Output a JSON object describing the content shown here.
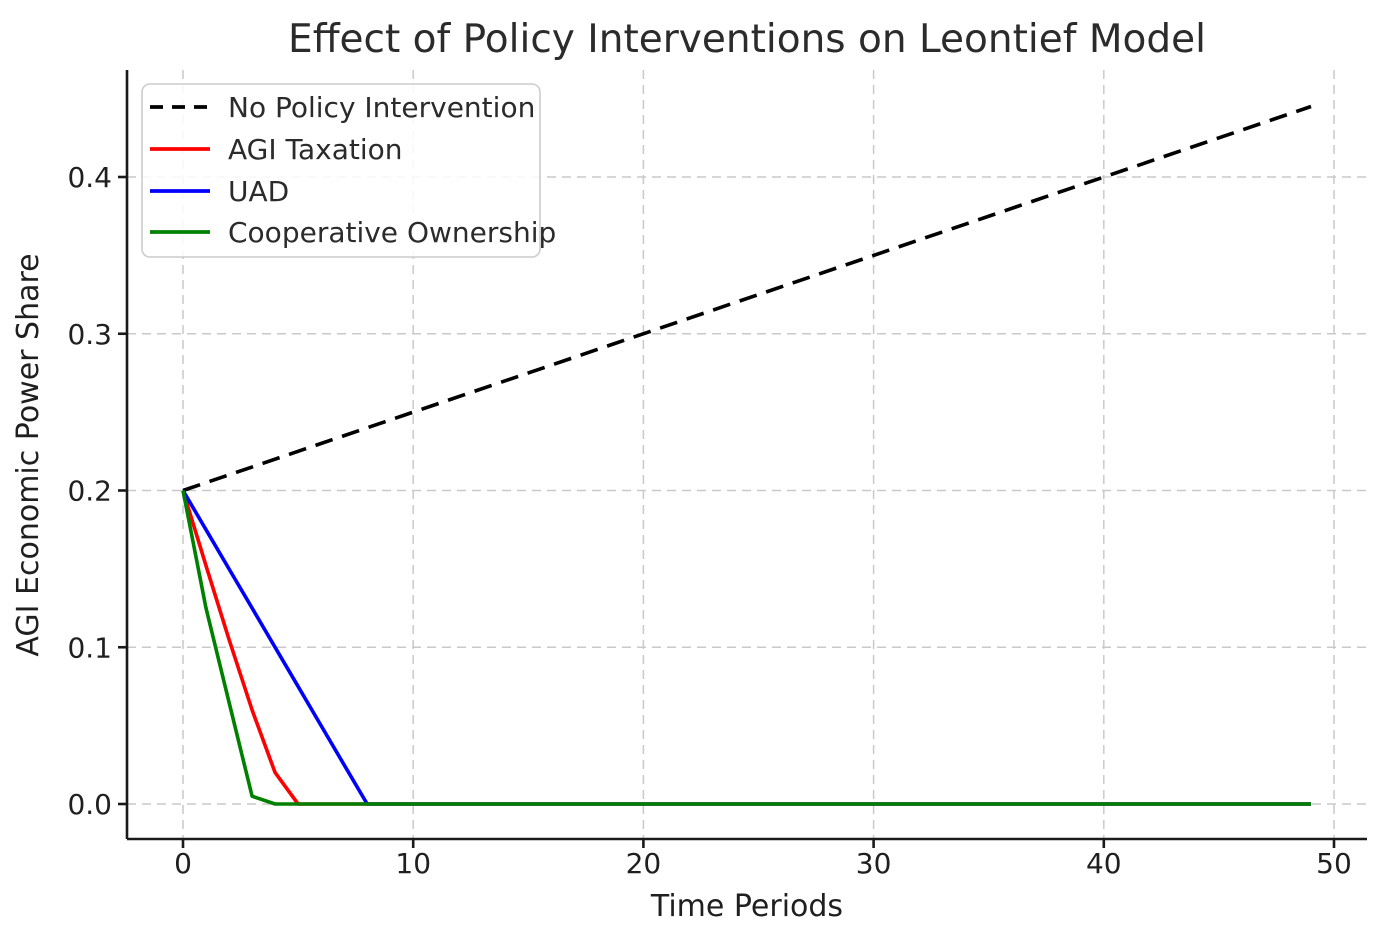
{
  "figure": {
    "background_color": "#ffffff",
    "text_color": "#1f1f1f",
    "spine_color": "#1a1a1a",
    "grid_color": "#c9c9c9"
  },
  "chart_data": {
    "type": "line",
    "title": "Effect of Policy Interventions on Leontief Model",
    "xlabel": "Time Periods",
    "ylabel": "AGI Economic Power Share",
    "xlim": [
      -2.45,
      51.45
    ],
    "ylim": [
      -0.0222,
      0.468
    ],
    "xticks": [
      0,
      10,
      20,
      30,
      40,
      50
    ],
    "xtick_labels": [
      "0",
      "10",
      "20",
      "30",
      "40",
      "50"
    ],
    "yticks": [
      0.0,
      0.1,
      0.2,
      0.3,
      0.4
    ],
    "ytick_labels": [
      "0.0",
      "0.1",
      "0.2",
      "0.3",
      "0.4"
    ],
    "grid": {
      "on": true,
      "style": "dashed",
      "color": "#c9c9c9"
    },
    "legend": {
      "position": "upper-left",
      "border_color": "#cccccc",
      "fill": "#ffffff"
    },
    "series": [
      {
        "name": "No Policy Intervention",
        "color": "#000000",
        "dash": "dashed",
        "points": [
          [
            0,
            0.2
          ],
          [
            49,
            0.445
          ]
        ]
      },
      {
        "name": "AGI Taxation",
        "color": "#ff0000",
        "dash": "solid",
        "points": [
          [
            0,
            0.2
          ],
          [
            1,
            0.152
          ],
          [
            2,
            0.105
          ],
          [
            3,
            0.06
          ],
          [
            4,
            0.02
          ],
          [
            5,
            0.0
          ],
          [
            49,
            0.0
          ]
        ]
      },
      {
        "name": "UAD",
        "color": "#0000ff",
        "dash": "solid",
        "points": [
          [
            0,
            0.2
          ],
          [
            1,
            0.175
          ],
          [
            2,
            0.15
          ],
          [
            3,
            0.125
          ],
          [
            4,
            0.1
          ],
          [
            5,
            0.075
          ],
          [
            6,
            0.05
          ],
          [
            7,
            0.025
          ],
          [
            8,
            0.0
          ],
          [
            49,
            0.0
          ]
        ]
      },
      {
        "name": "Cooperative Ownership",
        "color": "#008000",
        "dash": "solid",
        "points": [
          [
            0,
            0.2
          ],
          [
            1,
            0.125
          ],
          [
            2,
            0.065
          ],
          [
            3,
            0.005
          ],
          [
            4,
            0.0
          ],
          [
            49,
            0.0
          ]
        ]
      }
    ]
  }
}
